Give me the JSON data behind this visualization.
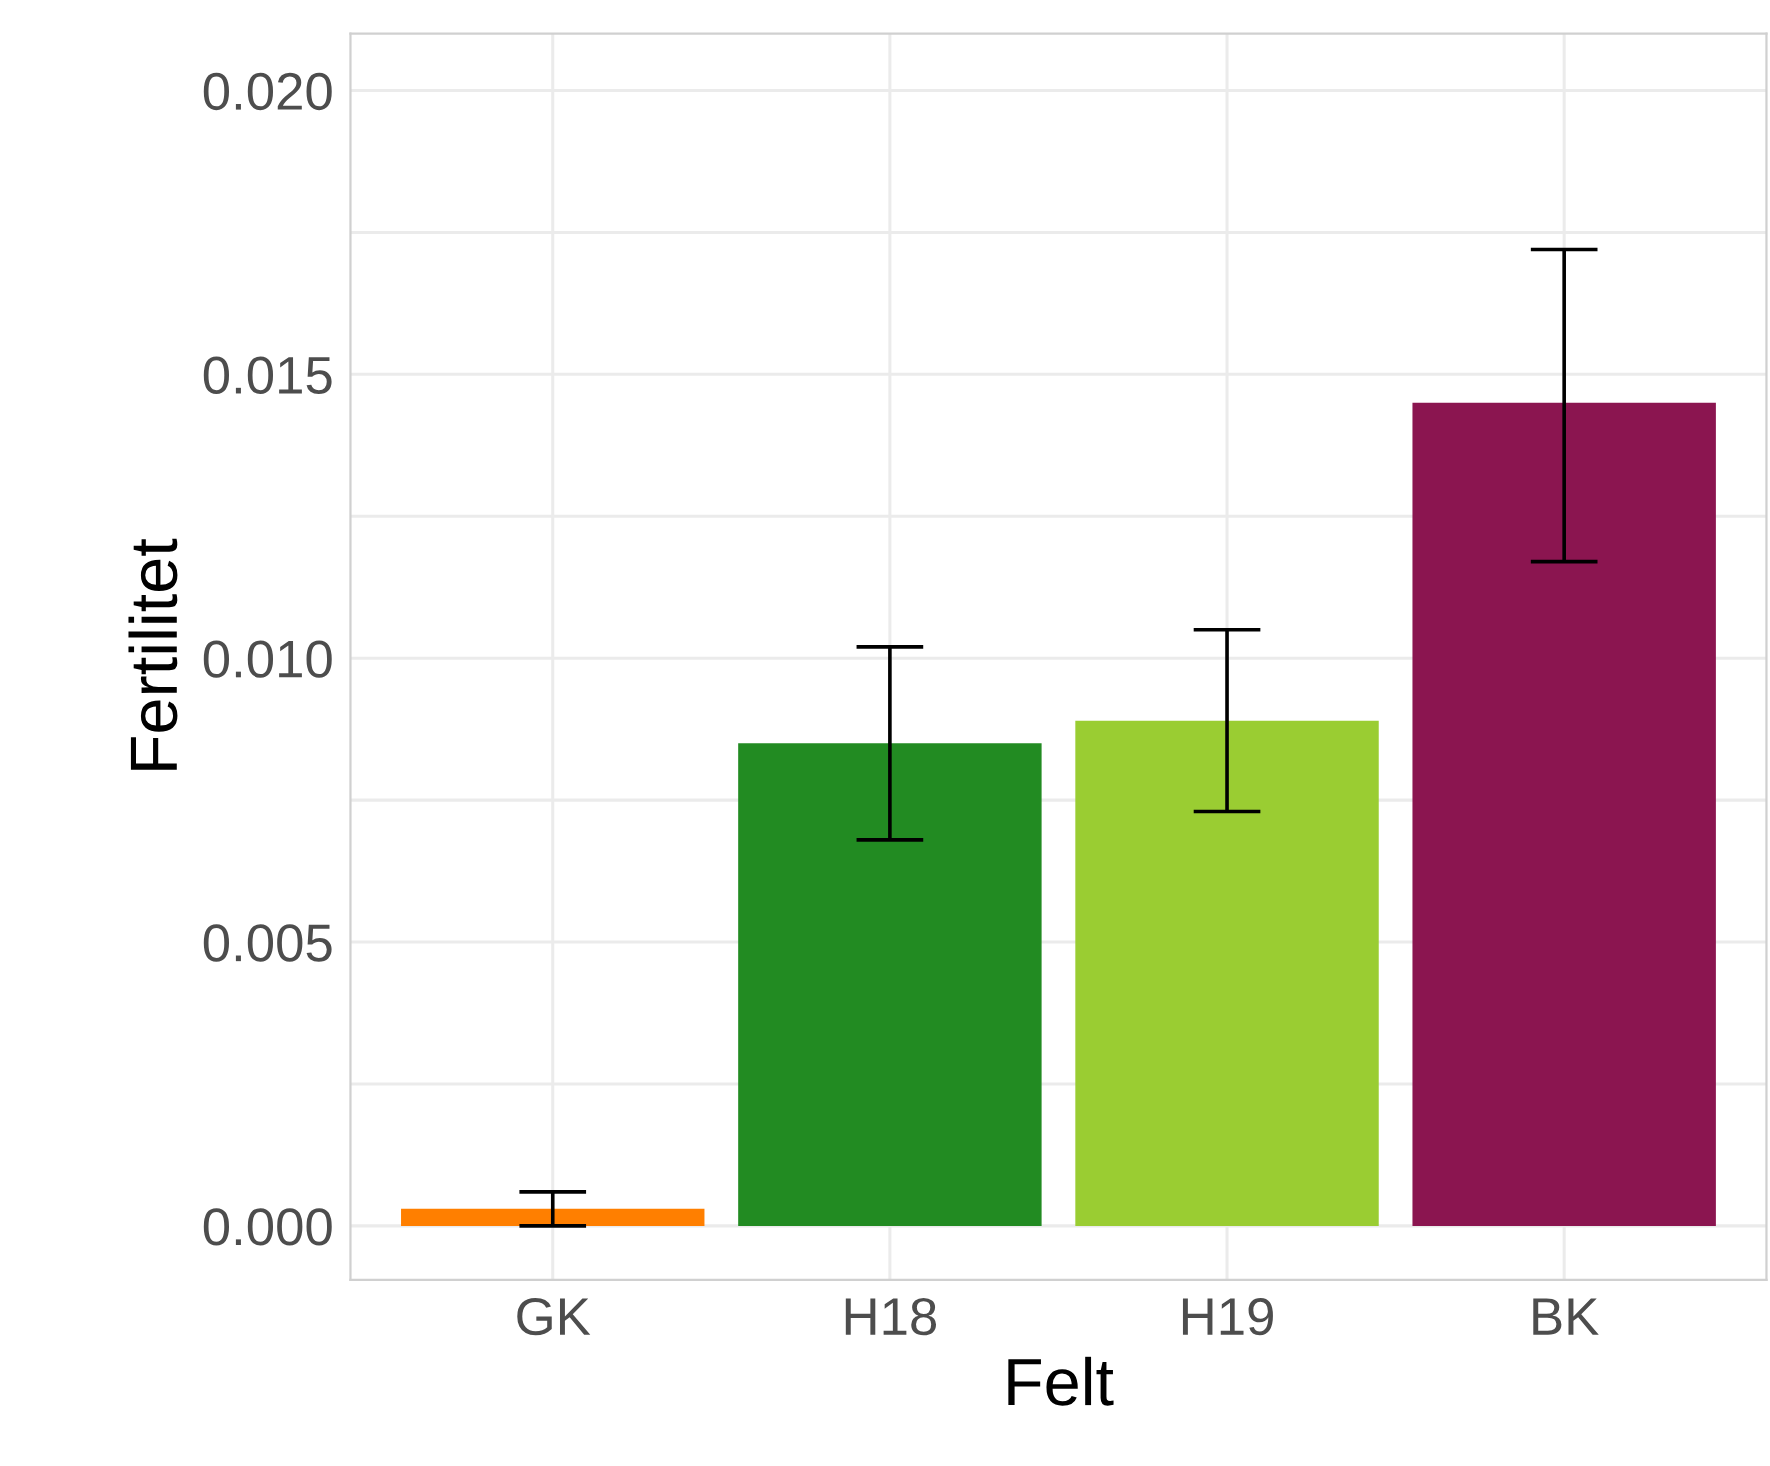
{
  "chart_data": {
    "type": "bar",
    "xlabel": "Felt",
    "ylabel": "Fertilitet",
    "categories": [
      "GK",
      "H18",
      "H19",
      "BK"
    ],
    "values": [
      0.0003,
      0.0085,
      0.0089,
      0.0145
    ],
    "colors": [
      "#ff7f00",
      "#228b22",
      "#9acd32",
      "#8b1550"
    ],
    "errors": [
      [
        0.0,
        0.0006
      ],
      [
        0.0068,
        0.0102
      ],
      [
        0.0073,
        0.0105
      ],
      [
        0.0117,
        0.0172
      ]
    ],
    "ylim": [
      -0.00095,
      0.021
    ],
    "yticks": [
      {
        "value": 0,
        "label": "0.000"
      },
      {
        "value": 0.0025,
        "label": null
      },
      {
        "value": 0.005,
        "label": "0.005"
      },
      {
        "value": 0.0075,
        "label": null
      },
      {
        "value": 0.01,
        "label": "0.010"
      },
      {
        "value": 0.0125,
        "label": null
      },
      {
        "value": 0.015,
        "label": "0.015"
      },
      {
        "value": 0.0175,
        "label": null
      },
      {
        "value": 0.02,
        "label": "0.020"
      }
    ],
    "grid": true
  }
}
